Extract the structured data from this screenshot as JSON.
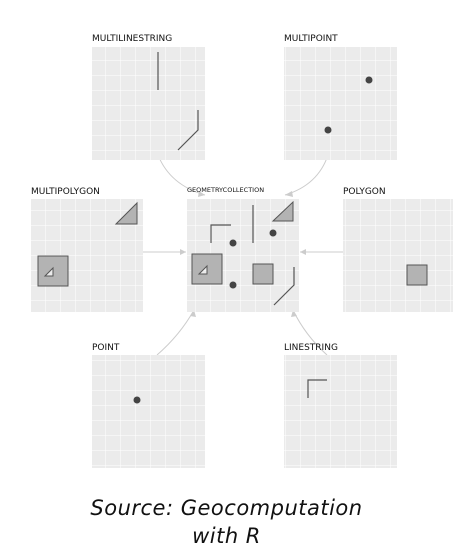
{
  "panels": {
    "multilinestring": "MULTILINESTRING",
    "multipoint": "MULTIPOINT",
    "multipolygon": "MULTIPOLYGON",
    "geometrycollection": "GEOMETRYCOLLECTION",
    "polygon": "POLYGON",
    "point": "POINT",
    "linestring": "LINESTRING"
  },
  "caption": {
    "line1": "Source: Geocomputation",
    "line2": "with R"
  },
  "colors": {
    "panel_bg": "#ebebeb",
    "grid": "#ffffff",
    "geometry_fill": "#b3b3b3",
    "geometry_stroke": "#555555",
    "point": "#444444",
    "arrow": "#cccccc"
  }
}
